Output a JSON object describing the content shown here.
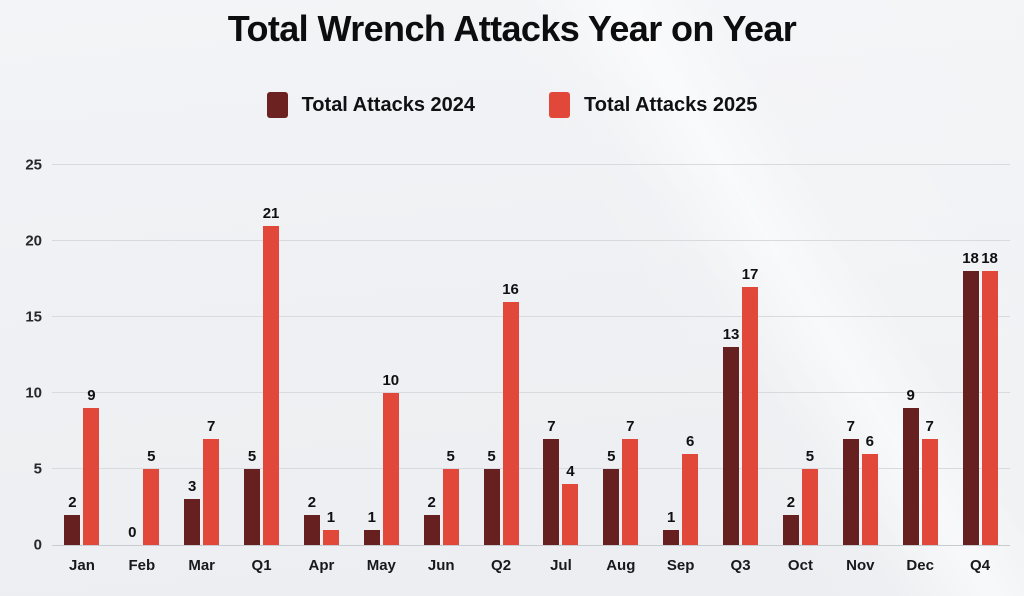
{
  "title": "Total Wrench Attacks Year on Year",
  "legend": [
    {
      "label": "Total Attacks 2024",
      "color": "#6b2221"
    },
    {
      "label": "Total Attacks 2025",
      "color": "#e1483a"
    }
  ],
  "colors": {
    "series_2024": "#662020",
    "series_2025": "#e1483a",
    "gridline": "#d8dade",
    "baseline": "#c8cbcf",
    "background": "#eff1f4"
  },
  "chart_data": {
    "type": "bar",
    "title": "Total Wrench Attacks Year on Year",
    "categories": [
      "Jan",
      "Feb",
      "Mar",
      "Q1",
      "Apr",
      "May",
      "Jun",
      "Q2",
      "Jul",
      "Aug",
      "Sep",
      "Q3",
      "Oct",
      "Nov",
      "Dec",
      "Q4"
    ],
    "series": [
      {
        "name": "Total Attacks 2024",
        "color": "#662020",
        "values": [
          2,
          0,
          3,
          5,
          2,
          1,
          2,
          5,
          7,
          5,
          1,
          13,
          2,
          7,
          9,
          18
        ]
      },
      {
        "name": "Total Attacks 2025",
        "color": "#e1483a",
        "values": [
          9,
          5,
          7,
          21,
          1,
          10,
          5,
          16,
          4,
          7,
          6,
          17,
          5,
          6,
          7,
          18
        ]
      }
    ],
    "xlabel": "",
    "ylabel": "",
    "ylim": [
      0,
      25
    ],
    "yticks": [
      0,
      5,
      10,
      15,
      20,
      25
    ],
    "grid": true,
    "legend_position": "top",
    "data_labels": true
  }
}
